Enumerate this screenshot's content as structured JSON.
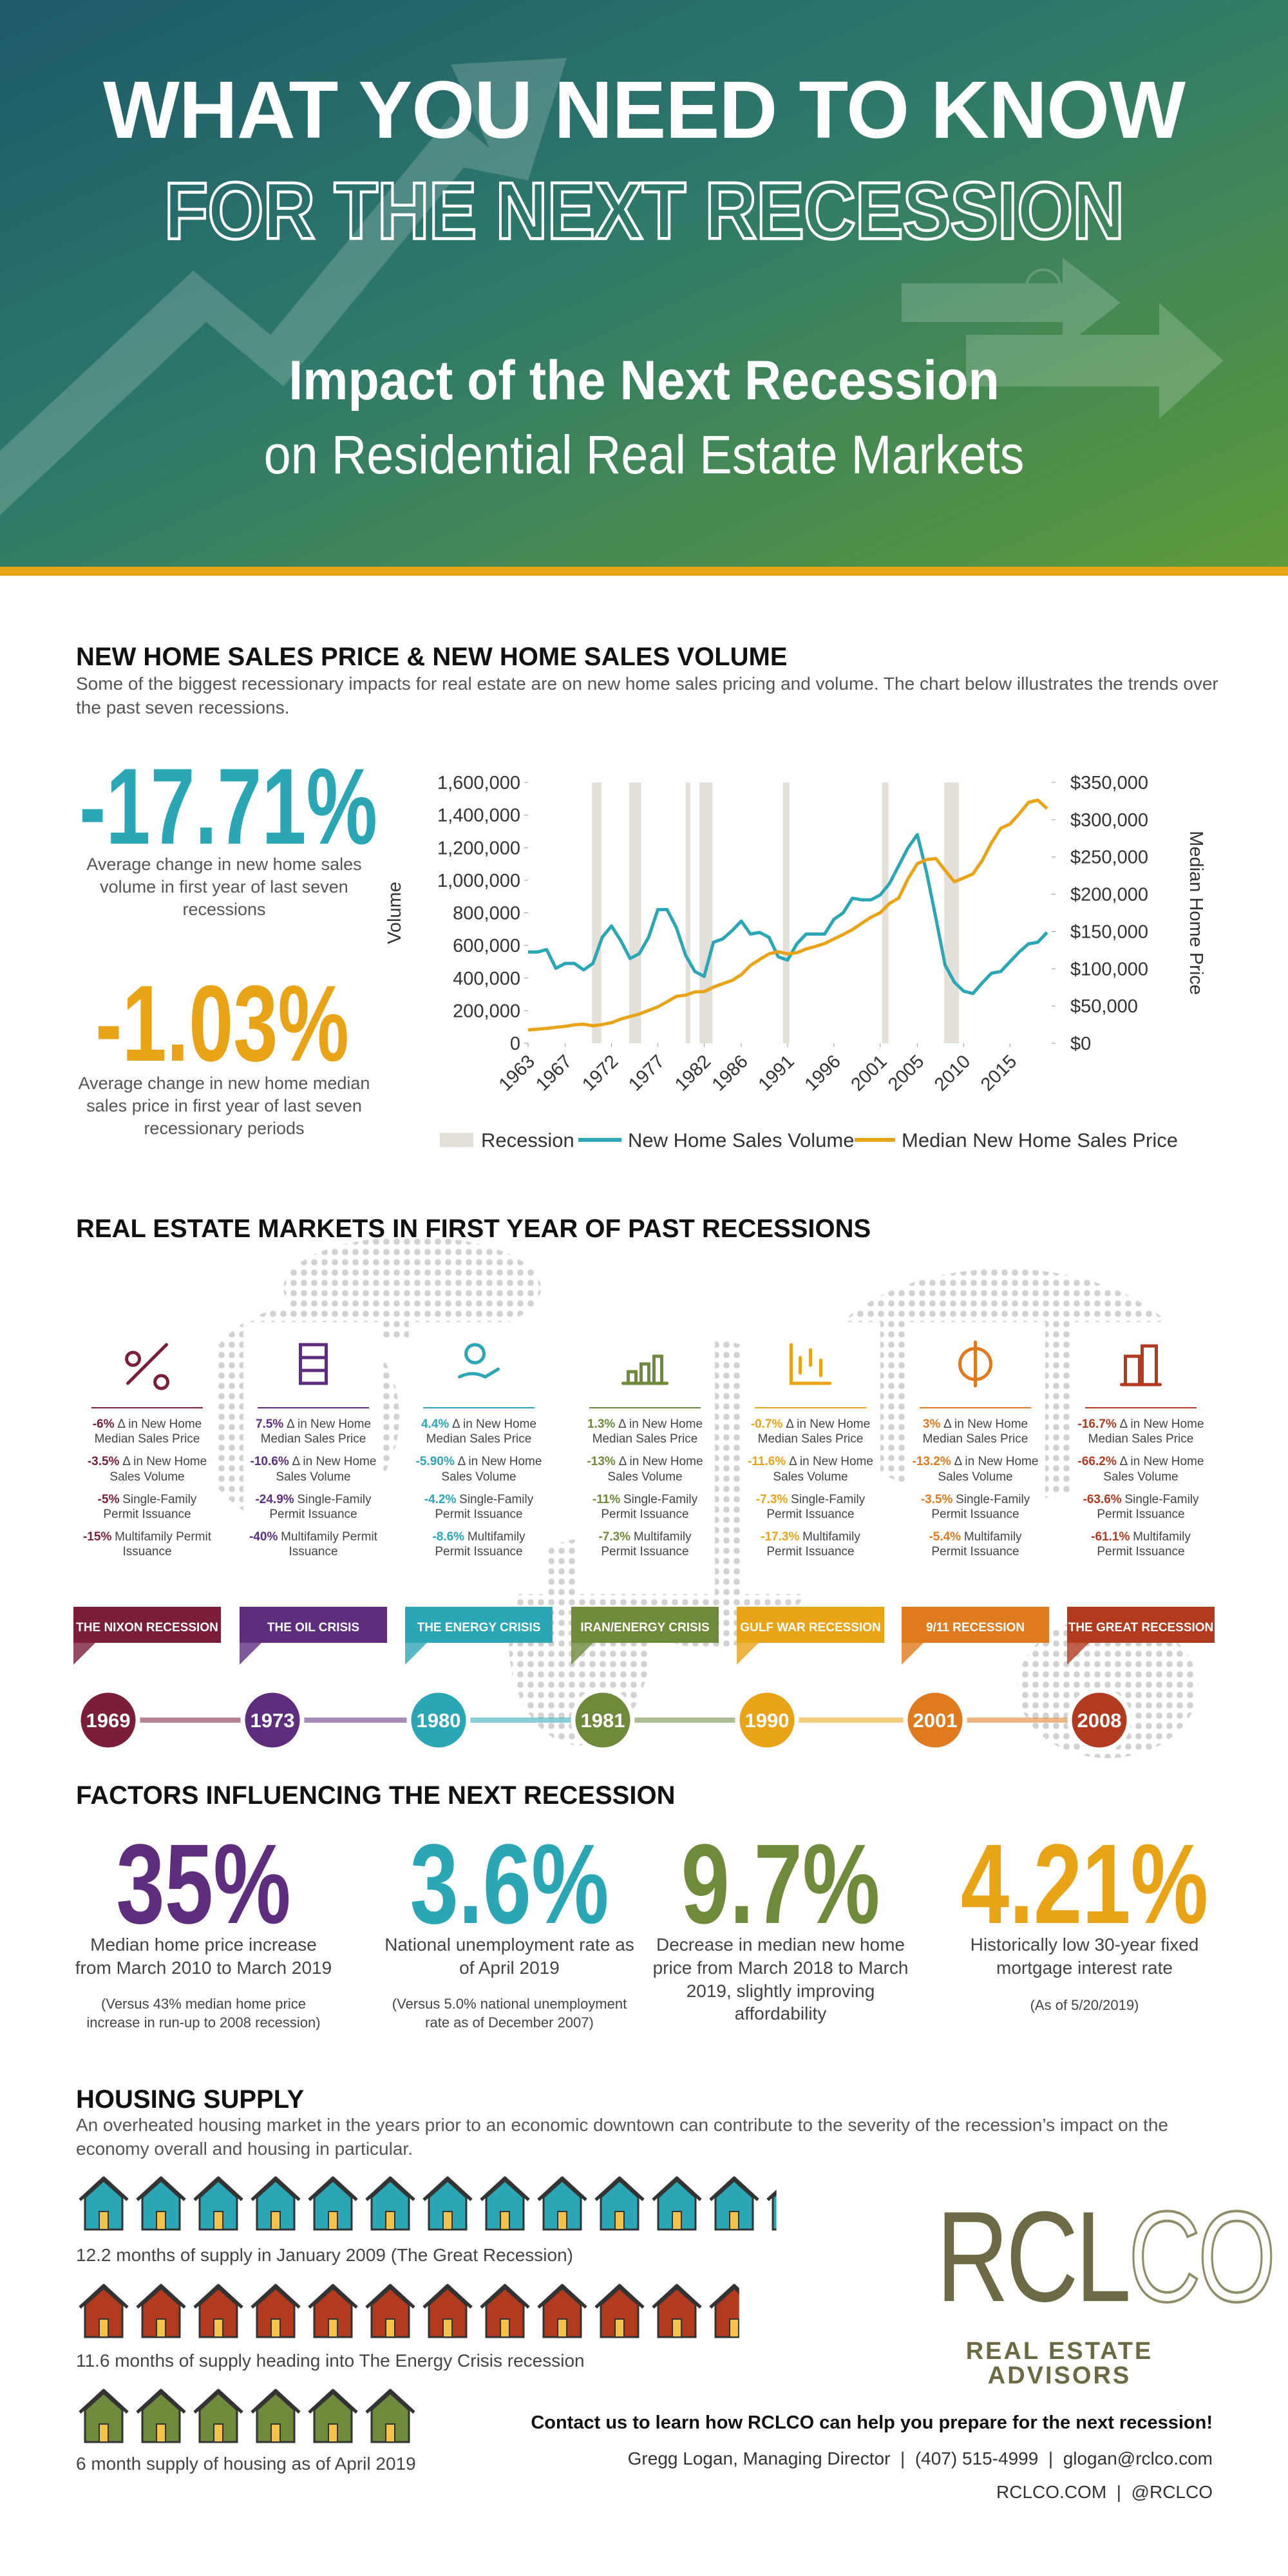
{
  "header": {
    "title": "WHAT YOU NEED TO KNOW",
    "title2": "FOR THE NEXT RECESSION",
    "subtitle": "Impact of the Next Recession",
    "subtitle2": "on Residential Real Estate Markets"
  },
  "sales": {
    "heading": "NEW HOME SALES PRICE & NEW HOME SALES VOLUME",
    "intro": "Some of the biggest recessionary impacts for real estate are on new home sales pricing and volume. The chart below illustrates the trends over the past seven recessions.",
    "stats": [
      {
        "value": "-17.71%",
        "text": "Average change in new home sales volume in first year of last seven recessions",
        "color": "#2aa6b5"
      },
      {
        "value": "-1.03%",
        "text": "Average change in new home median sales price in first year of last seven recessionary periods",
        "color": "#e8a317"
      }
    ]
  },
  "chart": {
    "type": "line",
    "ylabel": "Volume",
    "y2label": "Median Home Price",
    "x": [
      1963,
      1964,
      1965,
      1966,
      1967,
      1968,
      1969,
      1970,
      1971,
      1972,
      1973,
      1974,
      1975,
      1976,
      1977,
      1978,
      1979,
      1980,
      1981,
      1982,
      1983,
      1984,
      1985,
      1986,
      1987,
      1988,
      1989,
      1990,
      1991,
      1992,
      1993,
      1994,
      1995,
      1996,
      1997,
      1998,
      1999,
      2000,
      2001,
      2002,
      2003,
      2004,
      2005,
      2006,
      2007,
      2008,
      2009,
      2010,
      2011,
      2012,
      2013,
      2014,
      2015,
      2016,
      2017,
      2018,
      2019
    ],
    "xlim": [
      1963,
      2019.5
    ],
    "xticks": [
      1963,
      1967,
      1972,
      1977,
      1982,
      1986,
      1991,
      1996,
      2001,
      2005,
      2010,
      2015
    ],
    "ylim": [
      0,
      1600000
    ],
    "yticks": [
      0,
      {
        "value": 200000,
        "label": "200,000"
      },
      {
        "value": 400000,
        "label": "400,000"
      },
      {
        "value": 600000,
        "label": "600,000"
      },
      {
        "value": 800000,
        "label": "800,000"
      },
      {
        "value": 1000000,
        "label": "1,000,000"
      },
      {
        "value": 1200000,
        "label": "1,200,000"
      },
      {
        "value": 1400000,
        "label": "1,400,000"
      },
      {
        "value": 1600000,
        "label": "1,600,000"
      }
    ],
    "y2lim": [
      0,
      350000
    ],
    "y2ticks": [
      {
        "value": 0,
        "label": "$0"
      },
      {
        "value": 50000,
        "label": "$50,000"
      },
      {
        "value": 100000,
        "label": "$100,000"
      },
      {
        "value": 150000,
        "label": "$150,000"
      },
      {
        "value": 200000,
        "label": "$200,000"
      },
      {
        "value": 250000,
        "label": "$250,000"
      },
      {
        "value": 300000,
        "label": "$300,000"
      },
      {
        "value": 350000,
        "label": "$350,000"
      }
    ],
    "recessions": {
      "name": "Recession",
      "color": "#e2e0d8",
      "ranges": [
        [
          1969.9,
          1970.9
        ],
        [
          1973.9,
          1975.2
        ],
        [
          1980.0,
          1980.5
        ],
        [
          1981.5,
          1982.9
        ],
        [
          1990.5,
          1991.2
        ],
        [
          2001.2,
          2001.9
        ],
        [
          2007.9,
          2009.5
        ]
      ]
    },
    "series": [
      {
        "name": "New Home Sales Volume",
        "color": "#2aa6b5",
        "values": [
          560000,
          560000,
          575000,
          460000,
          490000,
          490000,
          450000,
          490000,
          650000,
          720000,
          630000,
          520000,
          550000,
          650000,
          820000,
          820000,
          710000,
          540000,
          440000,
          410000,
          620000,
          640000,
          690000,
          750000,
          670000,
          680000,
          650000,
          530000,
          510000,
          610000,
          670000,
          670000,
          670000,
          760000,
          800000,
          890000,
          880000,
          880000,
          910000,
          980000,
          1090000,
          1200000,
          1280000,
          1050000,
          770000,
          480000,
          375000,
          320000,
          305000,
          370000,
          430000,
          440000,
          500000,
          560000,
          610000,
          620000,
          680000
        ]
      },
      {
        "name": "Median New Home Sales Price",
        "color": "#e8a317",
        "axis": "y2",
        "values": [
          18000,
          18900,
          20000,
          21400,
          22700,
          24700,
          25600,
          23400,
          25200,
          27600,
          32500,
          35900,
          39300,
          44200,
          48800,
          55700,
          62900,
          64600,
          68900,
          69300,
          75300,
          79900,
          84300,
          92000,
          104500,
          112500,
          120000,
          122900,
          120000,
          121500,
          126500,
          130000,
          133900,
          140000,
          146000,
          152500,
          161000,
          169000,
          175200,
          187600,
          195000,
          221000,
          240900,
          246500,
          247900,
          232100,
          216700,
          221800,
          227200,
          245200,
          268900,
          288500,
          294200,
          307800,
          323100,
          326400,
          315000
        ]
      }
    ]
  },
  "markets": {
    "heading": "REAL ESTATE MARKETS IN FIRST YEAR OF PAST RECESSIONS",
    "recessions": [
      {
        "name": "THE NIXON RECESSION",
        "year": "1969",
        "color": "#7a1e3a",
        "items": [
          {
            "change": "-6%",
            "text": "Δ in New Home Median Sales Price"
          },
          {
            "change": "-3.5%",
            "text": "Δ in New Home Sales Volume"
          },
          {
            "change": "-5%",
            "text": "Single-Family Permit Issuance"
          },
          {
            "change": "-15%",
            "text": "Multifamily Permit Issuance"
          }
        ]
      },
      {
        "name": "THE OIL CRISIS",
        "year": "1973",
        "color": "#5e2e7e",
        "items": [
          {
            "change": "7.5%",
            "text": "Δ in New Home Median Sales Price"
          },
          {
            "change": "-10.6%",
            "text": "Δ in New Home Sales Volume"
          },
          {
            "change": "-24.9%",
            "text": "Single-Family Permit Issuance"
          },
          {
            "change": "-40%",
            "text": "Multifamily Permit Issuance"
          }
        ]
      },
      {
        "name": "THE ENERGY CRISIS",
        "year": "1980",
        "color": "#2aa6b5",
        "items": [
          {
            "change": "4.4%",
            "text": "Δ in New Home Median Sales Price"
          },
          {
            "change": "-5.90%",
            "text": "Δ in New Home Sales Volume"
          },
          {
            "change": "-4.2%",
            "text": "Single-Family Permit Issuance"
          },
          {
            "change": "-8.6%",
            "text": "Multifamily Permit Issuance"
          }
        ]
      },
      {
        "name": "IRAN/ENERGY CRISIS",
        "year": "1981",
        "color": "#6e8a3a",
        "items": [
          {
            "change": "1.3%",
            "text": "Δ in New Home Median Sales Price"
          },
          {
            "change": "-13%",
            "text": "Δ in New Home Sales Volume"
          },
          {
            "change": "-11%",
            "text": "Single-Family Permit Issuance"
          },
          {
            "change": "-7.3%",
            "text": "Multifamily Permit Issuance"
          }
        ]
      },
      {
        "name": "GULF WAR RECESSION",
        "year": "1990",
        "color": "#e8a317",
        "items": [
          {
            "change": "-0.7%",
            "text": "Δ in New Home Median Sales Price"
          },
          {
            "change": "-11.6%",
            "text": "Δ in New Home Sales Volume"
          },
          {
            "change": "-7.3%",
            "text": "Single-Family Permit Issuance"
          },
          {
            "change": "-17.3%",
            "text": "Multifamily Permit Issuance"
          }
        ]
      },
      {
        "name": "9/11 RECESSION",
        "year": "2001",
        "color": "#e07a1e",
        "items": [
          {
            "change": "3%",
            "text": "Δ in New Home Median Sales Price"
          },
          {
            "change": "-13.2%",
            "text": "Δ in New Home Sales Volume"
          },
          {
            "change": "-3.5%",
            "text": "Single-Family Permit Issuance"
          },
          {
            "change": "-5.4%",
            "text": "Multifamily Permit Issuance"
          }
        ]
      },
      {
        "name": "THE GREAT RECESSION",
        "year": "2008",
        "color": "#b23a1e",
        "items": [
          {
            "change": "-16.7%",
            "text": "Δ in New Home Median Sales Price"
          },
          {
            "change": "-66.2%",
            "text": "Δ in New Home Sales Volume"
          },
          {
            "change": "-63.6%",
            "text": "Single-Family Permit Issuance"
          },
          {
            "change": "-61.1%",
            "text": "Multifamily Permit Issuance"
          }
        ]
      }
    ]
  },
  "factors": {
    "heading": "FACTORS INFLUENCING THE NEXT RECESSION",
    "items": [
      {
        "value": "35%",
        "color": "#5e2e7e",
        "text": "Median home price increase from March 2010 to March 2019",
        "note": "(Versus 43% median home price increase in run-up to 2008 recession)"
      },
      {
        "value": "3.6%",
        "color": "#2aa6b5",
        "text": "National unemployment rate as of April 2019",
        "note": "(Versus 5.0% national unemployment rate as of December 2007)"
      },
      {
        "value": "9.7%",
        "color": "#6e8a3a",
        "text": "Decrease in median new home price from March 2018 to March 2019, slightly improving affordability"
      },
      {
        "value": "4.21%",
        "color": "#e8a317",
        "text": "Historically low 30-year fixed mortgage interest rate",
        "note": "(As of 5/20/2019)"
      }
    ]
  },
  "supply": {
    "heading": "HOUSING SUPPLY",
    "intro": "An overheated housing market in the years prior to an economic downtown can contribute to the severity of the recession’s impact on the economy overall and housing in particular.",
    "rows": [
      {
        "months": 12.2,
        "color": "#2aa6b5",
        "text": "12.2 months of supply in January 2009 (The Great Recession)"
      },
      {
        "months": 11.6,
        "color": "#b23a1e",
        "text": "11.6 months of supply heading into The Energy Crisis recession"
      },
      {
        "months": 6,
        "color": "#6e8a3a",
        "text": "6 month supply of housing as of April 2019"
      }
    ]
  },
  "logo": {
    "parts": [
      "RCL",
      "CO"
    ],
    "tagline": "REAL ESTATE ADVISORS"
  },
  "contact": {
    "cta": "Contact us to learn how RCLCO can help you prepare for the next recession!",
    "line1": "Gregg Logan, Managing Director  |  (407) 515-4999  |  glogan@rclco.com",
    "line2": "RCLCO.COM  |  @RCLCO"
  }
}
